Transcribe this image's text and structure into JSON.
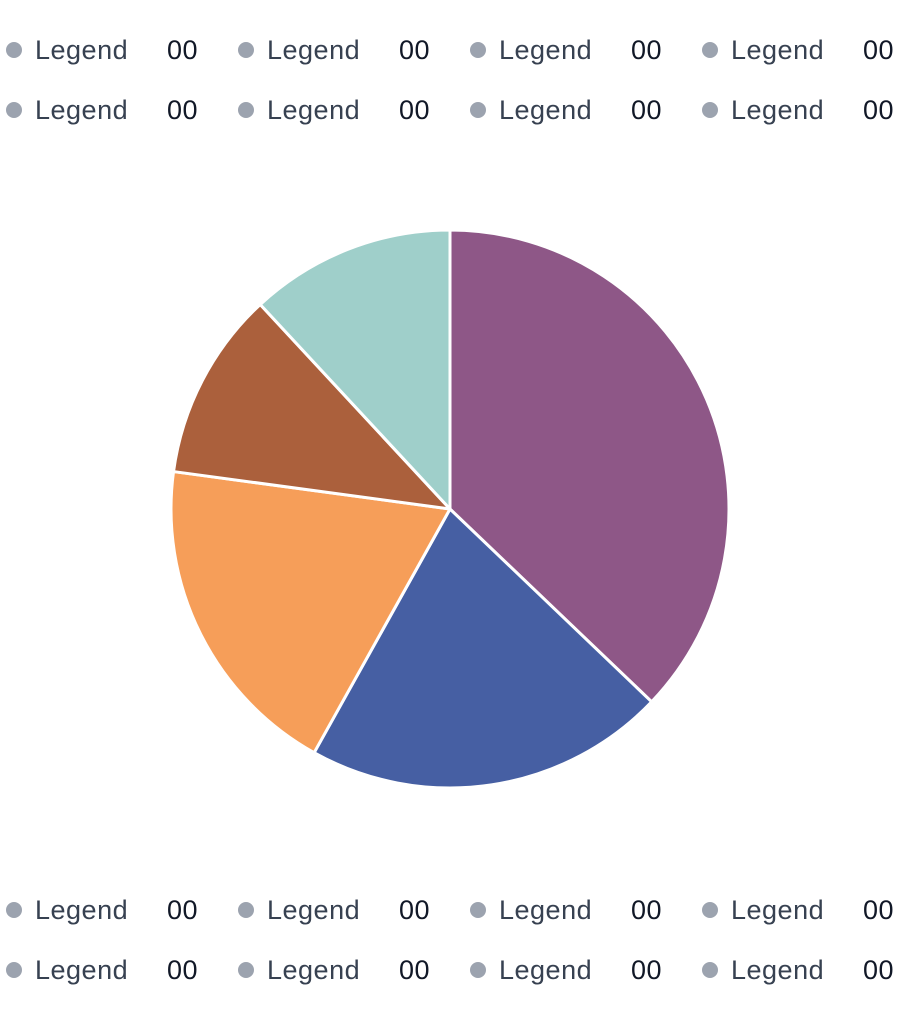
{
  "legend": {
    "dot_color": "#9ca3af",
    "top": [
      [
        {
          "label": "Legend",
          "value": "00"
        },
        {
          "label": "Legend",
          "value": "00"
        },
        {
          "label": "Legend",
          "value": "00"
        },
        {
          "label": "Legend",
          "value": "00"
        }
      ],
      [
        {
          "label": "Legend",
          "value": "00"
        },
        {
          "label": "Legend",
          "value": "00"
        },
        {
          "label": "Legend",
          "value": "00"
        },
        {
          "label": "Legend",
          "value": "00"
        }
      ]
    ],
    "bottom": [
      [
        {
          "label": "Legend",
          "value": "00"
        },
        {
          "label": "Legend",
          "value": "00"
        },
        {
          "label": "Legend",
          "value": "00"
        },
        {
          "label": "Legend",
          "value": "00"
        }
      ],
      [
        {
          "label": "Legend",
          "value": "00"
        },
        {
          "label": "Legend",
          "value": "00"
        },
        {
          "label": "Legend",
          "value": "00"
        },
        {
          "label": "Legend",
          "value": "00"
        }
      ]
    ]
  },
  "chart_data": {
    "type": "pie",
    "title": "",
    "legend_placement": "top and bottom",
    "start_angle_deg": 0,
    "direction": "clockwise",
    "slices": [
      {
        "value": 39,
        "color": "#8e5787"
      },
      {
        "value": 22,
        "color": "#465fa3"
      },
      {
        "value": 20,
        "color": "#f69e59"
      },
      {
        "value": 11.5,
        "color": "#ab603c"
      },
      {
        "value": 12.5,
        "color": "#9fcfca"
      }
    ]
  }
}
